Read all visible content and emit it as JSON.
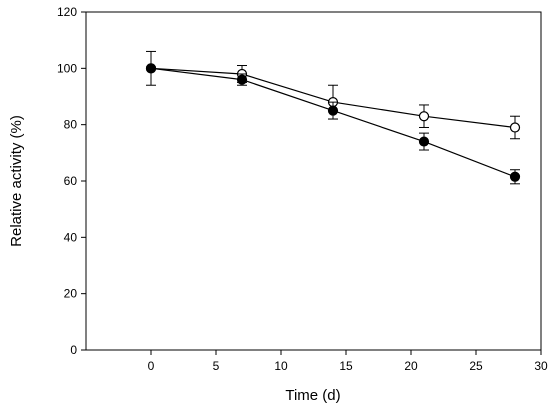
{
  "chart_data": {
    "type": "line",
    "title": "",
    "xlabel": "Time (d)",
    "ylabel": "Relative activity (%)",
    "xlim": [
      -5,
      30
    ],
    "ylim": [
      0,
      120
    ],
    "xticks": [
      0,
      5,
      10,
      15,
      20,
      25,
      30
    ],
    "yticks": [
      0,
      20,
      40,
      60,
      80,
      100,
      120
    ],
    "grid": false,
    "legend": "none",
    "series": [
      {
        "marker": "open-circle",
        "x": [
          0,
          7,
          14,
          21,
          28
        ],
        "y": [
          100,
          98,
          88,
          83,
          79
        ],
        "err": [
          6,
          3,
          6,
          4,
          4
        ]
      },
      {
        "marker": "filled-circle",
        "x": [
          0,
          7,
          14,
          21,
          28
        ],
        "y": [
          100,
          96,
          85,
          74,
          61.5
        ],
        "err": [
          0,
          2,
          3,
          3,
          2.5
        ]
      }
    ]
  }
}
